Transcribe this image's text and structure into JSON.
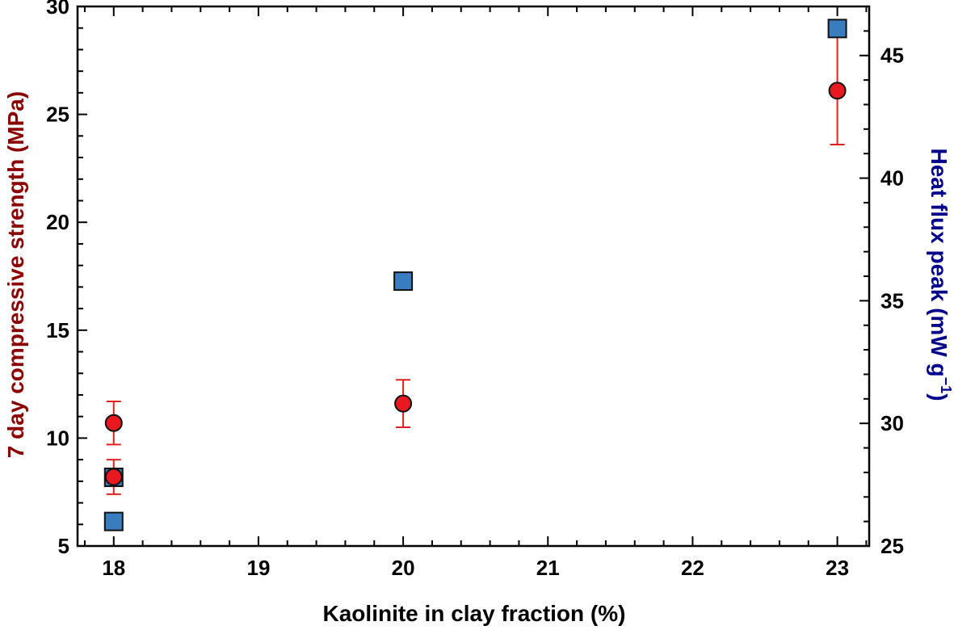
{
  "chart_data": {
    "type": "scatter",
    "xlabel": "Kaolinite in clay fraction (%)",
    "ylabel_left": "7 day compressive strength (MPa)",
    "ylabel_right_main": "Heat flux peak (mW g",
    "ylabel_right_sup": "−1",
    "ylabel_right_close": ")",
    "xlim": [
      17.75,
      23.22
    ],
    "ylim_left": [
      5,
      30
    ],
    "ylim_right": [
      25,
      47
    ],
    "x_ticks": [
      18,
      19,
      20,
      21,
      22,
      23
    ],
    "y_left_ticks": [
      5,
      10,
      15,
      20,
      25,
      30
    ],
    "y_right_ticks": [
      25,
      30,
      35,
      40,
      45
    ],
    "grid": false,
    "colors": {
      "left_axis_title": "#8b0000",
      "right_axis_title": "#00008b",
      "strength_marker": "#e8191f",
      "strength_errorbar": "#e02020",
      "heat_flux_marker": "#3a7cc0",
      "axes": "#000000"
    },
    "series": [
      {
        "axis": "left",
        "marker": "circle",
        "x": [
          18,
          18,
          20,
          23
        ],
        "y": [
          10.7,
          8.2,
          11.6,
          26.1
        ],
        "err_low": [
          1.0,
          0.8,
          1.1,
          2.5
        ],
        "err_high": [
          1.0,
          0.8,
          1.1,
          2.5
        ]
      },
      {
        "axis": "right",
        "marker": "square",
        "x": [
          18,
          18,
          20,
          23
        ],
        "y": [
          27.8,
          26.0,
          35.8,
          46.1
        ]
      }
    ]
  }
}
